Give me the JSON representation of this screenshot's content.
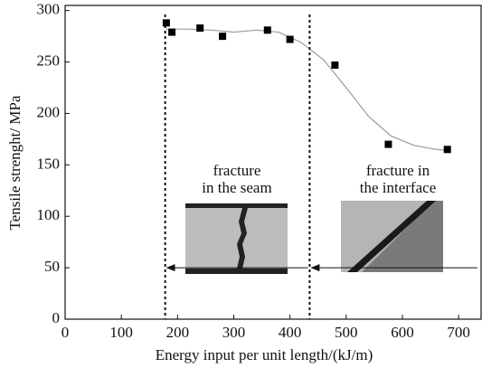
{
  "chart_data": {
    "type": "scatter",
    "x_label": "Energy input per unit length/(kJ/m)",
    "y_label": "Tensile strenght/ MPa",
    "series": [
      {
        "x": [
          180,
          190,
          240,
          280,
          360,
          400,
          480,
          575,
          680
        ],
        "values": [
          288,
          279,
          283,
          275,
          281,
          272,
          247,
          170,
          165
        ],
        "color": "#000000"
      }
    ],
    "fit": {
      "x": [
        180,
        220,
        260,
        300,
        340,
        380,
        420,
        460,
        500,
        540,
        580,
        620,
        660,
        680
      ],
      "values": [
        282,
        282,
        281,
        279,
        281,
        279,
        269,
        252,
        225,
        197,
        178,
        169,
        165,
        164
      ],
      "color": "#9a9a9a"
    },
    "boundaries": [
      178,
      435
    ],
    "arrow_y": 50,
    "annotations": [
      "fracture",
      "in the seam",
      "fracture in",
      "the interface"
    ],
    "xlim": [
      0,
      740
    ],
    "ylim": [
      0,
      305
    ],
    "xticks": [
      0,
      100,
      200,
      300,
      400,
      500,
      600,
      700
    ],
    "yticks": [
      0,
      50,
      100,
      150,
      200,
      250,
      300
    ]
  }
}
